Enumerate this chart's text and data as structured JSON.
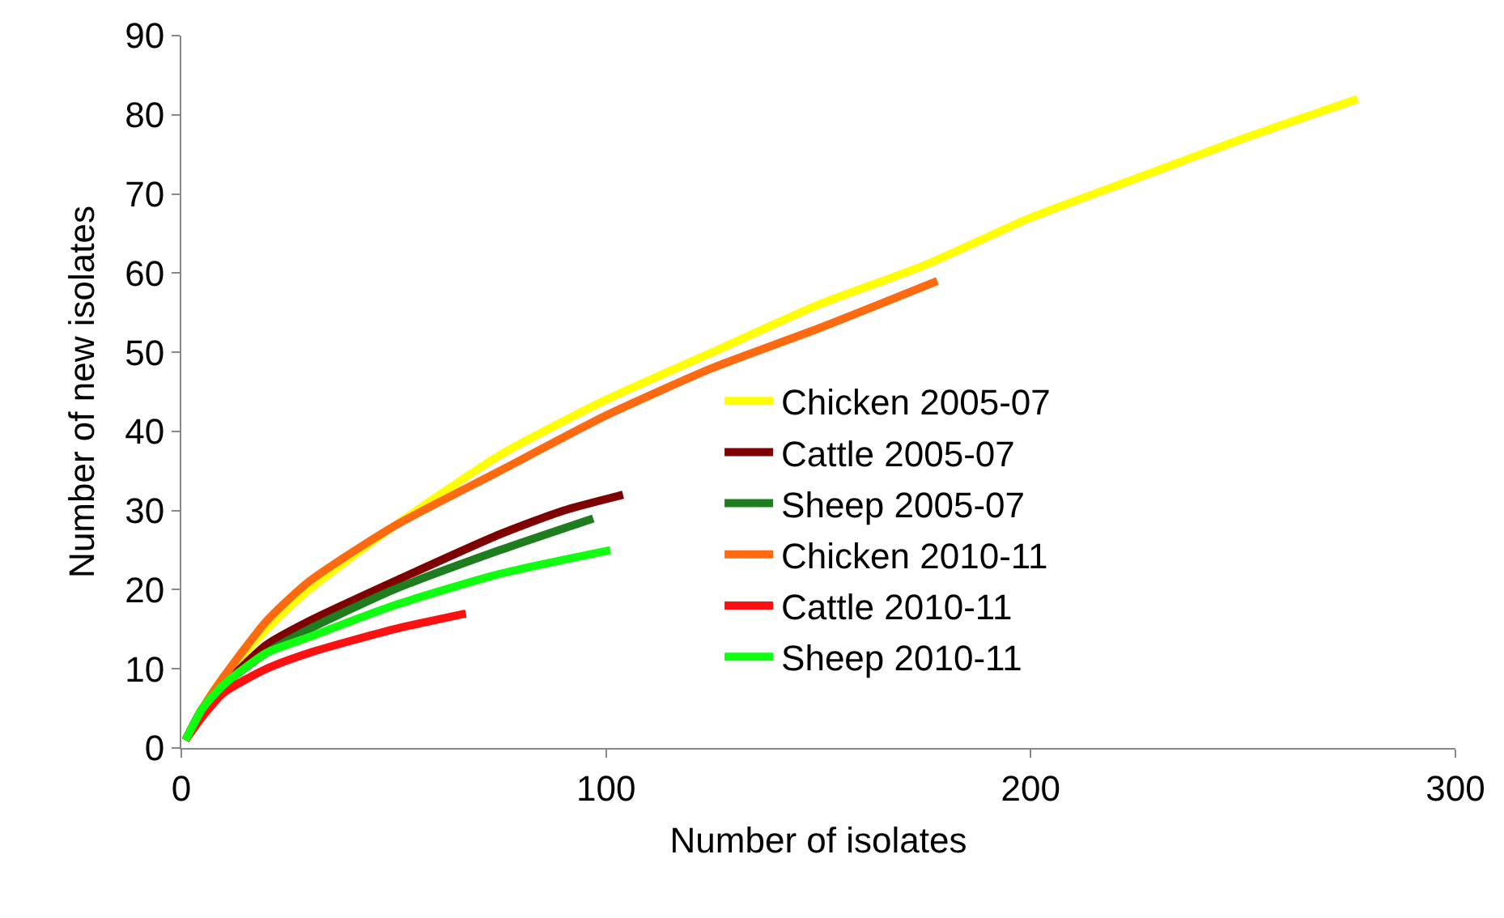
{
  "chart_data": {
    "type": "line",
    "xlabel": "Number of isolates",
    "ylabel": "Number of new isolates",
    "xlim": [
      0,
      300
    ],
    "xticks": [
      0,
      100,
      200,
      300
    ],
    "ylim": [
      0,
      90
    ],
    "yticks": [
      0,
      10,
      20,
      30,
      40,
      50,
      60,
      70,
      80,
      90
    ],
    "grid": false,
    "legend": "right",
    "marker": "none",
    "line_style": "solid",
    "series": [
      {
        "name": "Chicken 2005-07",
        "color": "#ffff00",
        "x": [
          1,
          5,
          10,
          20,
          30,
          50,
          75,
          100,
          125,
          150,
          175,
          200,
          225,
          250,
          277
        ],
        "values": [
          1,
          5,
          9,
          15,
          20,
          28,
          37,
          44,
          50,
          56,
          61,
          67,
          72,
          77,
          82
        ]
      },
      {
        "name": "Cattle 2005-07",
        "color": "#7f0000",
        "x": [
          1,
          5,
          10,
          20,
          30,
          50,
          75,
          90,
          104
        ],
        "values": [
          1,
          5,
          8,
          13,
          16,
          21,
          27,
          30,
          32
        ]
      },
      {
        "name": "Sheep 2005-07",
        "color": "#1e7d1e",
        "x": [
          1,
          5,
          10,
          20,
          30,
          50,
          75,
          97
        ],
        "values": [
          1,
          5,
          8,
          12,
          15,
          20,
          25,
          29
        ]
      },
      {
        "name": "Chicken 2010-11",
        "color": "#ff6a10",
        "x": [
          1,
          5,
          10,
          20,
          30,
          50,
          75,
          100,
          125,
          150,
          178
        ],
        "values": [
          1,
          5,
          9,
          16,
          21,
          28,
          35,
          42,
          48,
          53,
          59
        ]
      },
      {
        "name": "Cattle 2010-11",
        "color": "#ff1010",
        "x": [
          1,
          5,
          10,
          20,
          30,
          50,
          67
        ],
        "values": [
          1,
          4,
          7,
          10,
          12,
          15,
          17
        ]
      },
      {
        "name": "Sheep 2010-11",
        "color": "#10ff10",
        "x": [
          1,
          5,
          10,
          20,
          30,
          50,
          75,
          101
        ],
        "values": [
          1,
          5,
          8,
          12,
          14,
          18,
          22,
          25
        ]
      }
    ]
  }
}
